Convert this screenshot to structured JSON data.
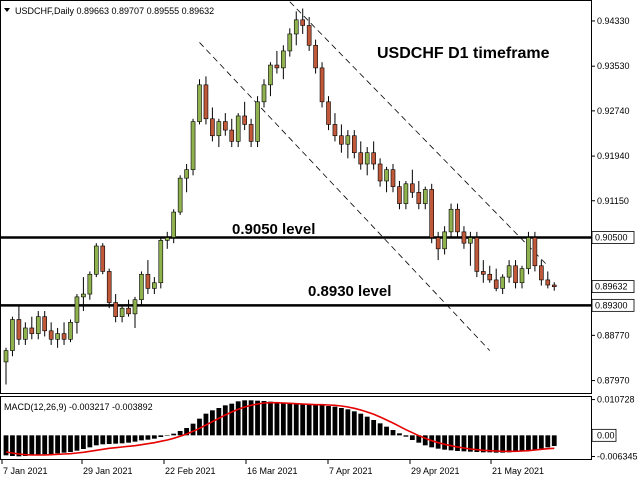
{
  "header": {
    "symbol_line": "USDCHF,Daily  0.89663 0.89707 0.89555 0.89632"
  },
  "annotations": {
    "timeframe_title": "USDCHF D1 timeframe",
    "level_upper_label": "0.9050 level",
    "level_lower_label": "0.8930 level"
  },
  "macd": {
    "label": "MACD(12,26,9) -0.003217 -0.003892",
    "axis_labels": [
      "0.010728",
      "0.00",
      "-0.006345"
    ]
  },
  "colors": {
    "bull": "#8fb24f",
    "bear": "#c0583a",
    "signal": "#e60000",
    "histogram": "#000000",
    "grid_text": "#000000"
  },
  "chart_data": {
    "type": "candlestick",
    "price_axis_ticks": [
      0.9433,
      0.9353,
      0.9274,
      0.9194,
      0.9115,
      0.89632,
      0.8877,
      0.8797
    ],
    "price_axis_tick_labels": [
      "0.94330",
      "0.93530",
      "0.92740",
      "0.91940",
      "0.91150",
      "0.90500",
      "0.89632",
      "0.89300",
      "0.88770",
      "0.87970"
    ],
    "price_tags": [
      {
        "value": 0.905,
        "label": "0.90500"
      },
      {
        "value": 0.89632,
        "label": "0.89632"
      },
      {
        "value": 0.893,
        "label": "0.89300"
      }
    ],
    "x_tick_labels": [
      "7 Jan 2021",
      "29 Jan 2021",
      "22 Feb 2021",
      "16 Mar 2021",
      "7 Apr 2021",
      "29 Apr 2021",
      "21 May 2021"
    ],
    "levels": [
      0.905,
      0.893
    ],
    "ylim": [
      0.8775,
      0.9463
    ],
    "candles": [
      [
        0.883,
        0.8855,
        0.879,
        0.885
      ],
      [
        0.885,
        0.891,
        0.884,
        0.8905
      ],
      [
        0.8905,
        0.893,
        0.886,
        0.887
      ],
      [
        0.887,
        0.89,
        0.886,
        0.889
      ],
      [
        0.889,
        0.891,
        0.887,
        0.888
      ],
      [
        0.888,
        0.892,
        0.887,
        0.891
      ],
      [
        0.891,
        0.892,
        0.8875,
        0.8885
      ],
      [
        0.8885,
        0.89,
        0.886,
        0.887
      ],
      [
        0.887,
        0.889,
        0.8855,
        0.888
      ],
      [
        0.888,
        0.89,
        0.886,
        0.887
      ],
      [
        0.887,
        0.8905,
        0.8865,
        0.89
      ],
      [
        0.89,
        0.895,
        0.888,
        0.8945
      ],
      [
        0.8945,
        0.898,
        0.892,
        0.895
      ],
      [
        0.895,
        0.899,
        0.894,
        0.8985
      ],
      [
        0.8985,
        0.904,
        0.898,
        0.9035
      ],
      [
        0.9035,
        0.904,
        0.8985,
        0.899
      ],
      [
        0.899,
        0.8995,
        0.8925,
        0.8935
      ],
      [
        0.8935,
        0.895,
        0.89,
        0.891
      ],
      [
        0.891,
        0.893,
        0.89,
        0.8925
      ],
      [
        0.8925,
        0.894,
        0.891,
        0.8915
      ],
      [
        0.8915,
        0.8945,
        0.889,
        0.894
      ],
      [
        0.894,
        0.899,
        0.893,
        0.8985
      ],
      [
        0.8985,
        0.901,
        0.895,
        0.896
      ],
      [
        0.896,
        0.898,
        0.895,
        0.897
      ],
      [
        0.897,
        0.905,
        0.896,
        0.9045
      ],
      [
        0.9045,
        0.906,
        0.903,
        0.905
      ],
      [
        0.905,
        0.91,
        0.904,
        0.9095
      ],
      [
        0.9095,
        0.916,
        0.909,
        0.9155
      ],
      [
        0.9155,
        0.918,
        0.913,
        0.917
      ],
      [
        0.917,
        0.926,
        0.916,
        0.9255
      ],
      [
        0.9255,
        0.933,
        0.925,
        0.932
      ],
      [
        0.932,
        0.9335,
        0.925,
        0.926
      ],
      [
        0.926,
        0.928,
        0.922,
        0.923
      ],
      [
        0.923,
        0.926,
        0.921,
        0.9255
      ],
      [
        0.9255,
        0.927,
        0.923,
        0.924
      ],
      [
        0.924,
        0.926,
        0.921,
        0.922
      ],
      [
        0.922,
        0.927,
        0.921,
        0.9265
      ],
      [
        0.9265,
        0.929,
        0.924,
        0.925
      ],
      [
        0.925,
        0.926,
        0.921,
        0.922
      ],
      [
        0.922,
        0.93,
        0.921,
        0.929
      ],
      [
        0.929,
        0.933,
        0.928,
        0.932
      ],
      [
        0.932,
        0.936,
        0.93,
        0.9355
      ],
      [
        0.9355,
        0.938,
        0.934,
        0.935
      ],
      [
        0.935,
        0.939,
        0.933,
        0.938
      ],
      [
        0.938,
        0.942,
        0.937,
        0.941
      ],
      [
        0.941,
        0.945,
        0.939,
        0.9435
      ],
      [
        0.9435,
        0.9455,
        0.941,
        0.9425
      ],
      [
        0.9425,
        0.944,
        0.938,
        0.939
      ],
      [
        0.939,
        0.94,
        0.934,
        0.935
      ],
      [
        0.935,
        0.936,
        0.928,
        0.929
      ],
      [
        0.929,
        0.93,
        0.924,
        0.925
      ],
      [
        0.925,
        0.927,
        0.922,
        0.923
      ],
      [
        0.923,
        0.925,
        0.92,
        0.9215
      ],
      [
        0.9215,
        0.924,
        0.919,
        0.923
      ],
      [
        0.923,
        0.924,
        0.919,
        0.92
      ],
      [
        0.92,
        0.922,
        0.917,
        0.918
      ],
      [
        0.918,
        0.921,
        0.916,
        0.92
      ],
      [
        0.92,
        0.922,
        0.917,
        0.918
      ],
      [
        0.918,
        0.919,
        0.914,
        0.915
      ],
      [
        0.915,
        0.9175,
        0.913,
        0.917
      ],
      [
        0.917,
        0.918,
        0.913,
        0.914
      ],
      [
        0.914,
        0.915,
        0.91,
        0.911
      ],
      [
        0.911,
        0.915,
        0.91,
        0.9145
      ],
      [
        0.9145,
        0.917,
        0.912,
        0.913
      ],
      [
        0.913,
        0.915,
        0.91,
        0.911
      ],
      [
        0.911,
        0.914,
        0.91,
        0.9135
      ],
      [
        0.9135,
        0.9145,
        0.904,
        0.905
      ],
      [
        0.905,
        0.906,
        0.901,
        0.903
      ],
      [
        0.903,
        0.907,
        0.902,
        0.906
      ],
      [
        0.906,
        0.911,
        0.905,
        0.91
      ],
      [
        0.91,
        0.911,
        0.905,
        0.906
      ],
      [
        0.906,
        0.907,
        0.903,
        0.904
      ],
      [
        0.904,
        0.906,
        0.9,
        0.905
      ],
      [
        0.905,
        0.906,
        0.898,
        0.899
      ],
      [
        0.899,
        0.901,
        0.897,
        0.8985
      ],
      [
        0.8985,
        0.9,
        0.897,
        0.8975
      ],
      [
        0.8975,
        0.8995,
        0.8955,
        0.896
      ],
      [
        0.896,
        0.8985,
        0.895,
        0.898
      ],
      [
        0.898,
        0.901,
        0.897,
        0.9
      ],
      [
        0.9,
        0.901,
        0.896,
        0.897
      ],
      [
        0.897,
        0.9,
        0.896,
        0.8995
      ],
      [
        0.8995,
        0.906,
        0.8985,
        0.905
      ],
      [
        0.905,
        0.906,
        0.899,
        0.9
      ],
      [
        0.9,
        0.901,
        0.8965,
        0.8975
      ],
      [
        0.8975,
        0.899,
        0.896,
        0.8966
      ],
      [
        0.8966,
        0.8971,
        0.8956,
        0.8963
      ]
    ],
    "macd_histogram": [
      -0.006,
      -0.0062,
      -0.0063,
      -0.0062,
      -0.006,
      -0.0058,
      -0.0057,
      -0.0056,
      -0.0054,
      -0.0052,
      -0.005,
      -0.0046,
      -0.0041,
      -0.0036,
      -0.003,
      -0.0027,
      -0.0026,
      -0.0025,
      -0.0024,
      -0.0022,
      -0.0019,
      -0.0015,
      -0.0013,
      -0.001,
      -0.0005,
      -0.0001,
      0.0005,
      0.0013,
      0.0022,
      0.0035,
      0.005,
      0.0065,
      0.0075,
      0.0082,
      0.009,
      0.0095,
      0.0102,
      0.0105,
      0.0105,
      0.0104,
      0.0103,
      0.0101,
      0.01,
      0.0098,
      0.0096,
      0.0094,
      0.0093,
      0.0092,
      0.0091,
      0.009,
      0.0088,
      0.0086,
      0.0082,
      0.0078,
      0.0072,
      0.0065,
      0.0056,
      0.0046,
      0.0036,
      0.0026,
      0.0016,
      0.0006,
      -0.0004,
      -0.0014,
      -0.0022,
      -0.003,
      -0.0036,
      -0.004,
      -0.0043,
      -0.0045,
      -0.0047,
      -0.0048,
      -0.0049,
      -0.005,
      -0.0051,
      -0.0051,
      -0.0052,
      -0.0052,
      -0.0051,
      -0.005,
      -0.0048,
      -0.0046,
      -0.0043,
      -0.004,
      -0.0036,
      -0.0032
    ],
    "macd_signal": [
      -0.005,
      -0.0053,
      -0.0056,
      -0.0058,
      -0.0059,
      -0.0059,
      -0.0059,
      -0.0058,
      -0.0057,
      -0.0056,
      -0.0055,
      -0.0053,
      -0.0051,
      -0.0048,
      -0.0045,
      -0.0042,
      -0.0039,
      -0.0037,
      -0.0035,
      -0.0033,
      -0.0031,
      -0.0028,
      -0.0025,
      -0.0022,
      -0.0018,
      -0.0014,
      -0.0009,
      -0.0003,
      0.0004,
      0.0012,
      0.0021,
      0.0031,
      0.0041,
      0.0051,
      0.0061,
      0.007,
      0.0078,
      0.0085,
      0.009,
      0.0094,
      0.0097,
      0.0098,
      0.0098,
      0.0097,
      0.0096,
      0.0095,
      0.0094,
      0.0093,
      0.0092,
      0.0092,
      0.0091,
      0.009,
      0.0088,
      0.0085,
      0.0081,
      0.0076,
      0.007,
      0.0063,
      0.0055,
      0.0046,
      0.0037,
      0.0027,
      0.0017,
      0.0008,
      -0.0001,
      -0.0009,
      -0.0016,
      -0.0022,
      -0.0027,
      -0.0031,
      -0.0035,
      -0.0038,
      -0.0041,
      -0.0043,
      -0.0045,
      -0.0046,
      -0.0047,
      -0.0048,
      -0.0048,
      -0.0048,
      -0.0047,
      -0.0046,
      -0.0044,
      -0.0042,
      -0.004,
      -0.0039
    ],
    "channel_lines": [
      {
        "style": "dashed",
        "points": [
          [
            44,
            0.9467
          ],
          [
            84,
            0.9
          ]
        ]
      },
      {
        "style": "dashed",
        "points": [
          [
            30,
            0.9395
          ],
          [
            75,
            0.885
          ]
        ]
      }
    ]
  }
}
